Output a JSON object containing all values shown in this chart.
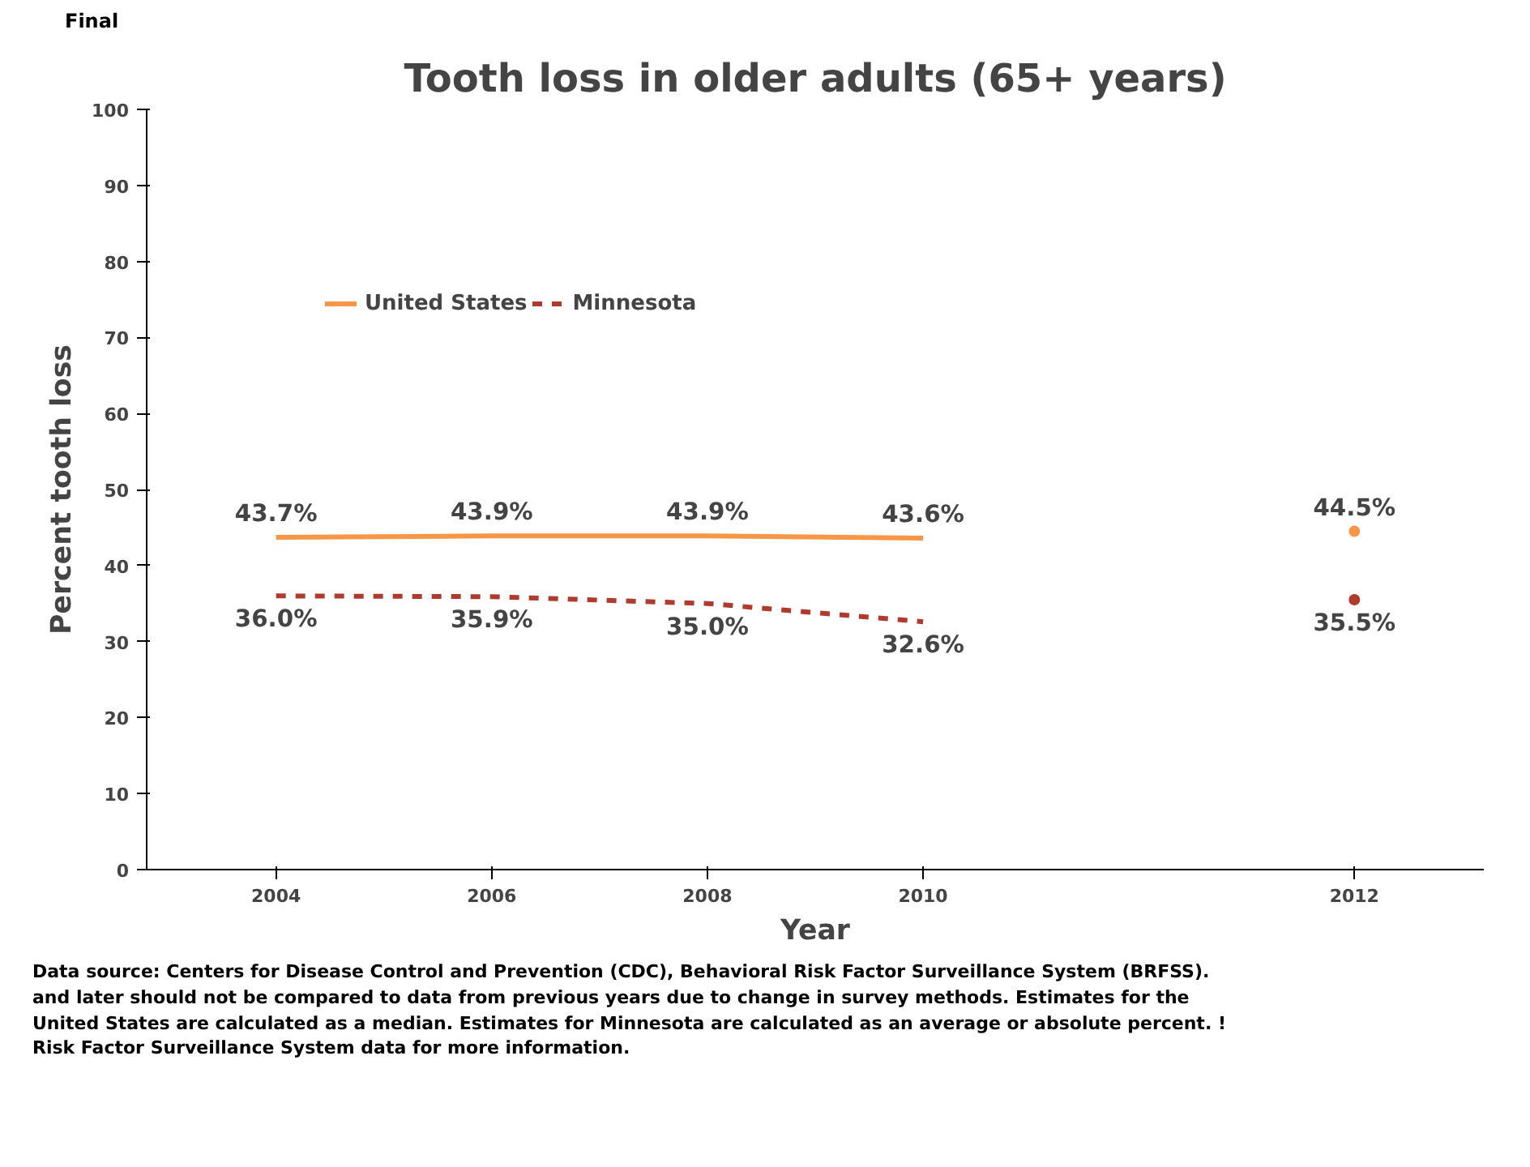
{
  "chart_data": {
    "type": "line",
    "title": "Tooth loss in older adults (65+ years)",
    "xlabel": "Year",
    "ylabel": "Percent tooth loss",
    "categories": [
      "2004",
      "2006",
      "2008",
      "2010",
      null,
      "2012"
    ],
    "series": [
      {
        "name": "United States",
        "color": "#f79646",
        "line_style": "solid",
        "values": [
          43.7,
          43.9,
          43.9,
          43.6,
          null,
          44.5
        ],
        "value_labels": [
          "43.7%",
          "43.9%",
          "43.9%",
          "43.6%",
          null,
          "44.5%"
        ]
      },
      {
        "name": "Minnesota",
        "color": "#b03a2e",
        "line_style": "dashed",
        "values": [
          36.0,
          35.9,
          35.0,
          32.6,
          null,
          35.5
        ],
        "value_labels": [
          "36.0%",
          "35.9%",
          "35.0%",
          "32.6%",
          null,
          "35.5%"
        ]
      }
    ],
    "ylim": [
      0,
      100
    ],
    "yticks": [
      0,
      10,
      20,
      30,
      40,
      50,
      60,
      70,
      80,
      90,
      100
    ],
    "grid": false,
    "legend": "top left",
    "marker": "none",
    "annotations": [
      "Final",
      "Data source: Centers for Disease Control and Prevention (CDC), Behavioral Risk Factor Surveillance System (BRFSS).",
      "and later should not be compared to data from previous years due to change in survey methods.  Estimates for the",
      "United States are calculated as a median.  Estimates for Minnesota are calculated as an average or absolute percent.  !",
      "Risk Factor Surveillance System data for more information."
    ]
  }
}
